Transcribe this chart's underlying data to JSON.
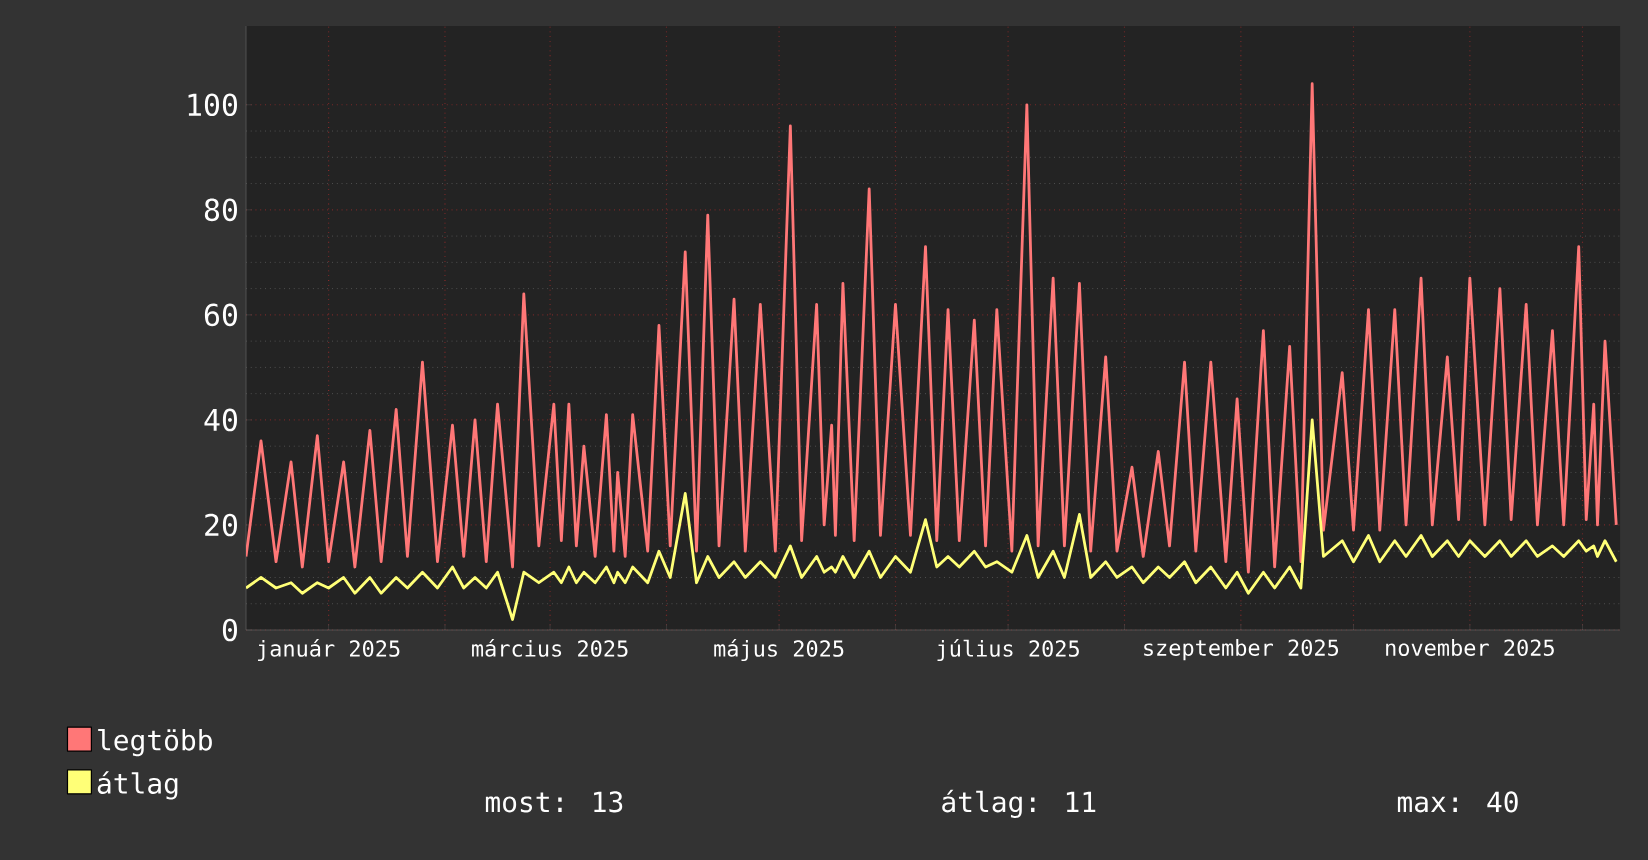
{
  "chart_data": {
    "type": "line",
    "x": [
      "2024-12-10",
      "2024-12-14",
      "2024-12-18",
      "2024-12-22",
      "2024-12-25",
      "2024-12-29",
      "2025-01-01",
      "2025-01-05",
      "2025-01-08",
      "2025-01-12",
      "2025-01-15",
      "2025-01-19",
      "2025-01-22",
      "2025-01-26",
      "2025-01-30",
      "2025-02-03",
      "2025-02-06",
      "2025-02-09",
      "2025-02-12",
      "2025-02-15",
      "2025-02-19",
      "2025-02-22",
      "2025-02-26",
      "2025-03-02",
      "2025-03-04",
      "2025-03-06",
      "2025-03-08",
      "2025-03-10",
      "2025-03-13",
      "2025-03-16",
      "2025-03-18",
      "2025-03-19",
      "2025-03-21",
      "2025-03-23",
      "2025-03-27",
      "2025-03-30",
      "2025-04-02",
      "2025-04-06",
      "2025-04-09",
      "2025-04-12",
      "2025-04-15",
      "2025-04-19",
      "2025-04-22",
      "2025-04-26",
      "2025-04-30",
      "2025-05-04",
      "2025-05-07",
      "2025-05-11",
      "2025-05-13",
      "2025-05-15",
      "2025-05-16",
      "2025-05-18",
      "2025-05-21",
      "2025-05-25",
      "2025-05-28",
      "2025-06-01",
      "2025-06-05",
      "2025-06-09",
      "2025-06-12",
      "2025-06-15",
      "2025-06-18",
      "2025-06-22",
      "2025-06-25",
      "2025-06-28",
      "2025-07-02",
      "2025-07-06",
      "2025-07-09",
      "2025-07-13",
      "2025-07-16",
      "2025-07-20",
      "2025-07-23",
      "2025-07-27",
      "2025-07-30",
      "2025-08-03",
      "2025-08-06",
      "2025-08-10",
      "2025-08-13",
      "2025-08-17",
      "2025-08-20",
      "2025-08-24",
      "2025-08-28",
      "2025-08-31",
      "2025-09-03",
      "2025-09-07",
      "2025-09-10",
      "2025-09-14",
      "2025-09-17",
      "2025-09-20",
      "2025-09-23",
      "2025-09-28",
      "2025-10-01",
      "2025-10-05",
      "2025-10-08",
      "2025-10-12",
      "2025-10-15",
      "2025-10-19",
      "2025-10-22",
      "2025-10-26",
      "2025-10-29",
      "2025-11-01",
      "2025-11-05",
      "2025-11-09",
      "2025-11-12",
      "2025-11-16",
      "2025-11-19",
      "2025-11-23",
      "2025-11-26",
      "2025-11-30",
      "2025-12-02",
      "2025-12-04",
      "2025-12-05",
      "2025-12-07",
      "2025-12-10"
    ],
    "series": [
      {
        "name": "legtöbb",
        "color": "#ff7777",
        "values": [
          14,
          36,
          13,
          32,
          12,
          37,
          13,
          32,
          12,
          38,
          13,
          42,
          14,
          51,
          13,
          39,
          14,
          40,
          13,
          43,
          12,
          64,
          16,
          43,
          17,
          43,
          16,
          35,
          14,
          41,
          15,
          30,
          14,
          41,
          15,
          58,
          16,
          72,
          15,
          79,
          16,
          63,
          15,
          62,
          15,
          96,
          17,
          62,
          20,
          39,
          18,
          66,
          17,
          84,
          18,
          62,
          18,
          73,
          17,
          61,
          17,
          59,
          16,
          61,
          15,
          100,
          16,
          67,
          16,
          66,
          15,
          52,
          15,
          31,
          14,
          34,
          16,
          51,
          15,
          51,
          13,
          44,
          11,
          57,
          12,
          54,
          13,
          104,
          19,
          49,
          19,
          61,
          19,
          61,
          20,
          67,
          20,
          52,
          21,
          67,
          20,
          65,
          21,
          62,
          20,
          57,
          20,
          73,
          21,
          43,
          20,
          55,
          20
        ]
      },
      {
        "name": "átlag",
        "color": "#ffff77",
        "values": [
          8,
          10,
          8,
          9,
          7,
          9,
          8,
          10,
          7,
          10,
          7,
          10,
          8,
          11,
          8,
          12,
          8,
          10,
          8,
          11,
          2,
          11,
          9,
          11,
          9,
          12,
          9,
          11,
          9,
          12,
          9,
          11,
          9,
          12,
          9,
          15,
          10,
          26,
          9,
          14,
          10,
          13,
          10,
          13,
          10,
          16,
          10,
          14,
          11,
          12,
          11,
          14,
          10,
          15,
          10,
          14,
          11,
          21,
          12,
          14,
          12,
          15,
          12,
          13,
          11,
          18,
          10,
          15,
          10,
          22,
          10,
          13,
          10,
          12,
          9,
          12,
          10,
          13,
          9,
          12,
          8,
          11,
          7,
          11,
          8,
          12,
          8,
          40,
          14,
          17,
          13,
          18,
          13,
          17,
          14,
          18,
          14,
          17,
          14,
          17,
          14,
          17,
          14,
          17,
          14,
          16,
          14,
          17,
          15,
          16,
          14,
          17,
          13
        ]
      }
    ],
    "xlim": [
      "2024-12-10",
      "2025-12-11"
    ],
    "xticks": [
      {
        "value": "2025-01-01",
        "label": "január 2025"
      },
      {
        "value": "2025-02-01",
        "label": null
      },
      {
        "value": "2025-03-01",
        "label": "március 2025"
      },
      {
        "value": "2025-04-01",
        "label": null
      },
      {
        "value": "2025-05-01",
        "label": "május 2025"
      },
      {
        "value": "2025-06-01",
        "label": null
      },
      {
        "value": "2025-07-01",
        "label": "július 2025"
      },
      {
        "value": "2025-08-01",
        "label": null
      },
      {
        "value": "2025-09-01",
        "label": "szeptember 2025"
      },
      {
        "value": "2025-10-01",
        "label": null
      },
      {
        "value": "2025-11-01",
        "label": "november 2025"
      },
      {
        "value": "2025-12-01",
        "label": null
      }
    ],
    "ylim": [
      0,
      115
    ],
    "yticks": [
      0,
      20,
      40,
      60,
      80,
      100
    ],
    "grid": true,
    "legend": "bottom left",
    "annotations": [
      "most: 13",
      "átlag: 11",
      "max: 40"
    ]
  }
}
